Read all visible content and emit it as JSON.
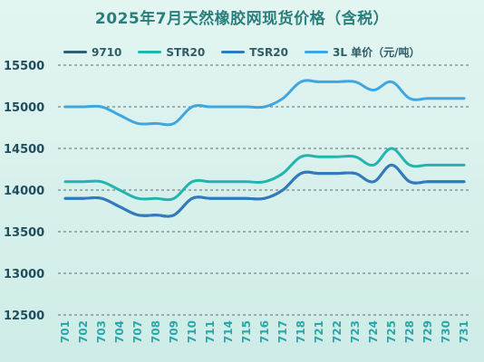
{
  "chart_data": {
    "type": "line",
    "title": "2025年7月天然橡胶网现货价格（含税）",
    "categories": [
      "701",
      "702",
      "703",
      "704",
      "707",
      "708",
      "709",
      "710",
      "711",
      "714",
      "715",
      "716",
      "717",
      "718",
      "721",
      "722",
      "723",
      "724",
      "725",
      "728",
      "729",
      "730",
      "731"
    ],
    "ylim": [
      12500,
      15500
    ],
    "yticks": [
      12500,
      13000,
      13500,
      14000,
      14500,
      15000,
      15500
    ],
    "grid": true,
    "legend_position": "top",
    "series": [
      {
        "name": "9710",
        "color": "#2e5f74",
        "values": [
          13900,
          13900,
          13900,
          13800,
          13700,
          13700,
          13700,
          13900,
          13900,
          13900,
          13900,
          13900,
          14000,
          14200,
          14200,
          14200,
          14200,
          14100,
          14300,
          14100,
          14100,
          14100,
          14100
        ]
      },
      {
        "name": "STR20",
        "color": "#23b3b0",
        "values": [
          14100,
          14100,
          14100,
          14000,
          13900,
          13900,
          13900,
          14100,
          14100,
          14100,
          14100,
          14100,
          14200,
          14400,
          14400,
          14400,
          14400,
          14300,
          14500,
          14300,
          14300,
          14300,
          14300
        ]
      },
      {
        "name": "TSR20",
        "color": "#2f7bbd",
        "values": [
          13900,
          13900,
          13900,
          13800,
          13700,
          13700,
          13700,
          13900,
          13900,
          13900,
          13900,
          13900,
          14000,
          14200,
          14200,
          14200,
          14200,
          14100,
          14300,
          14100,
          14100,
          14100,
          14100
        ]
      },
      {
        "name": "3L 单价（元/吨）",
        "color": "#3fa6e0",
        "values": [
          15000,
          15000,
          15000,
          14900,
          14800,
          14800,
          14800,
          15000,
          15000,
          15000,
          15000,
          15000,
          15100,
          15300,
          15300,
          15300,
          15300,
          15200,
          15300,
          15100,
          15100,
          15100,
          15100
        ]
      }
    ]
  }
}
